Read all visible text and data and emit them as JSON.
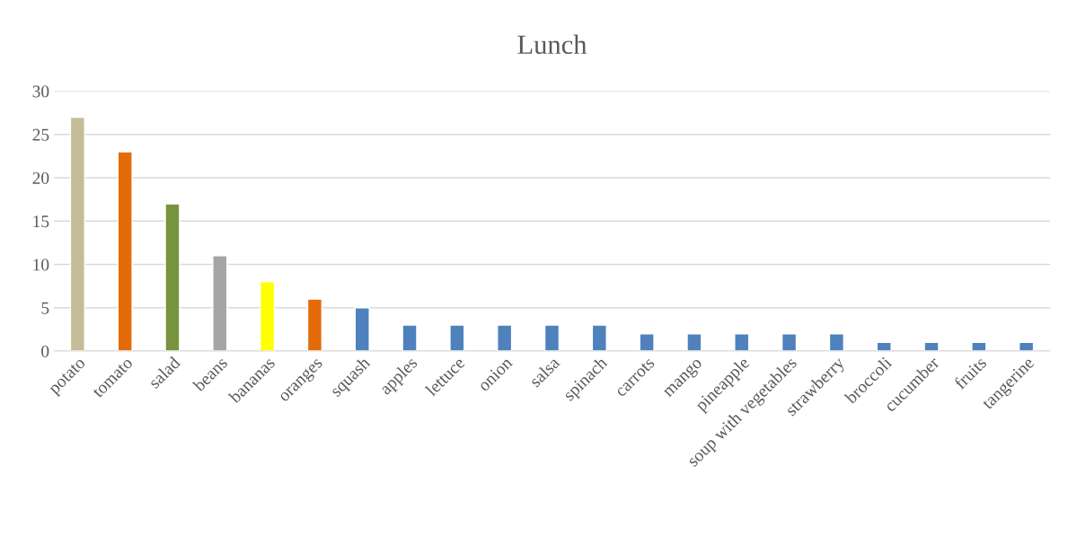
{
  "chart_data": {
    "type": "bar",
    "title": "Lunch",
    "categories": [
      "potato",
      "tomato",
      "salad",
      "beans",
      "bananas",
      "oranges",
      "squash",
      "apples",
      "lettuce",
      "onion",
      "salsa",
      "spinach",
      "carrots",
      "mango",
      "pineapple",
      "soup with vegetables",
      "strawberry",
      "broccoli",
      "cucumber",
      "fruits",
      "tangerine"
    ],
    "values": [
      27,
      23,
      17,
      11,
      8,
      6,
      5,
      3,
      3,
      3,
      3,
      3,
      2,
      2,
      2,
      2,
      2,
      1,
      1,
      1,
      1
    ],
    "colors": [
      "#c4bd97",
      "#e36c09",
      "#77933c",
      "#a5a5a5",
      "#ffff00",
      "#e36c09",
      "#4f81bd",
      "#4f81bd",
      "#4f81bd",
      "#4f81bd",
      "#4f81bd",
      "#4f81bd",
      "#4f81bd",
      "#4f81bd",
      "#4f81bd",
      "#4f81bd",
      "#4f81bd",
      "#4f81bd",
      "#4f81bd",
      "#4f81bd",
      "#4f81bd"
    ],
    "ylim": [
      0,
      30
    ],
    "yticks": [
      0,
      5,
      10,
      15,
      20,
      25,
      30
    ],
    "grid": "y",
    "legend": false
  }
}
